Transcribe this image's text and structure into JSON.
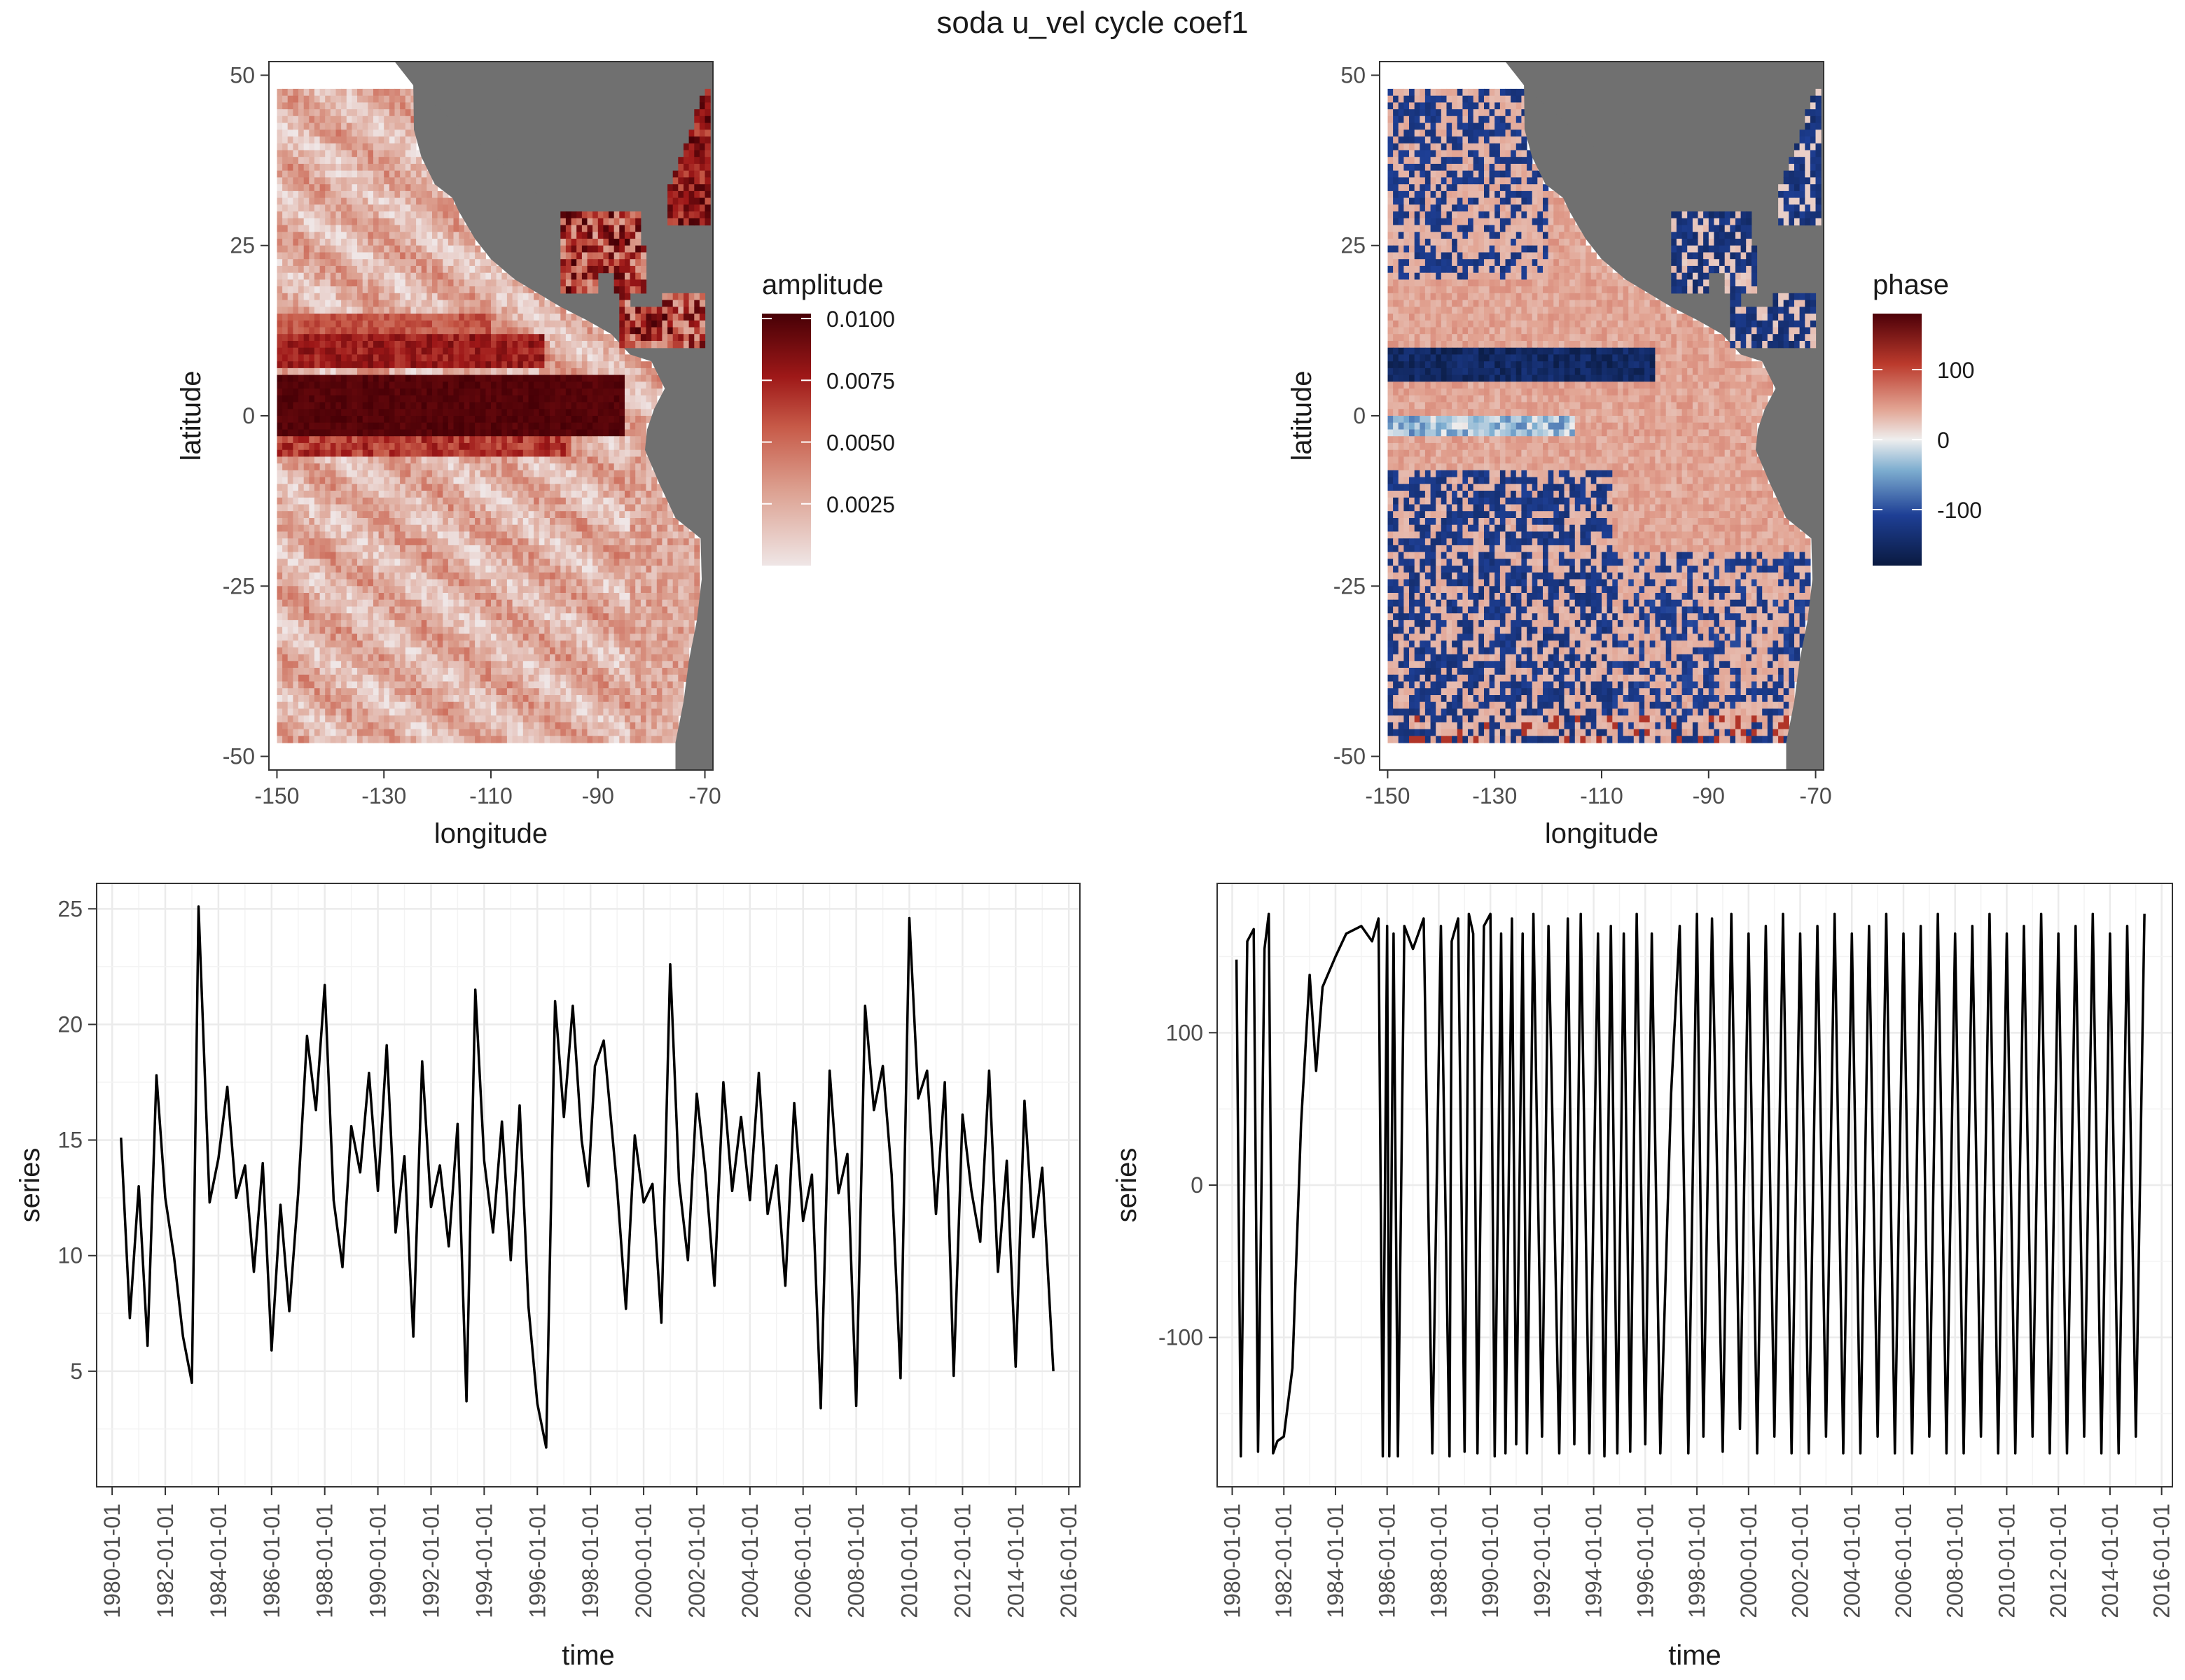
{
  "title": "soda u_vel cycle coef1",
  "colors": {
    "land": "#707070",
    "amp_low": "#efe6e6",
    "amp_high": "#470006",
    "phase_low": "#0a1a40",
    "phase_mid": "#eeeeee",
    "phase_high": "#4d0008",
    "line": "#000000"
  },
  "chart_data": [
    {
      "type": "heatmap",
      "panel": "top-left",
      "xlabel": "longitude",
      "ylabel": "latitude",
      "xticks": [
        "-150",
        "-130",
        "-110",
        "-90",
        "-70"
      ],
      "yticks": [
        "50",
        "25",
        "0",
        "-25",
        "-50"
      ],
      "xlim": [
        -151.5,
        -68.5
      ],
      "ylim": [
        -52,
        52
      ],
      "grid_extent": {
        "lon": [
          -150,
          -70
        ],
        "lat": [
          -48,
          48
        ]
      },
      "legend": {
        "title": "amplitude",
        "labels": [
          "0.0100",
          "0.0075",
          "0.0050",
          "0.0025"
        ],
        "values": [
          0.01,
          0.0075,
          0.005,
          0.0025
        ],
        "range": [
          0,
          0.0102
        ],
        "position": "right"
      },
      "features": [
        {
          "name": "equatorial band",
          "lat": [
            -3,
            6
          ],
          "lon": [
            -150,
            -85
          ],
          "value": 0.0102
        },
        {
          "name": "north band",
          "lat": [
            7,
            12
          ],
          "lon": [
            -150,
            -100
          ],
          "value": 0.0065
        },
        {
          "name": "south band",
          "lat": [
            -6,
            -3
          ],
          "lon": [
            -150,
            -95
          ],
          "value": 0.006
        }
      ]
    },
    {
      "type": "heatmap",
      "panel": "top-right",
      "xlabel": "longitude",
      "ylabel": "latitude",
      "xticks": [
        "-150",
        "-130",
        "-110",
        "-90",
        "-70"
      ],
      "yticks": [
        "50",
        "25",
        "0",
        "-25",
        "-50"
      ],
      "xlim": [
        -151.5,
        -68.5
      ],
      "ylim": [
        -52,
        52
      ],
      "grid_extent": {
        "lon": [
          -150,
          -70
        ],
        "lat": [
          -48,
          48
        ]
      },
      "legend": {
        "title": "phase",
        "labels": [
          "100",
          "0",
          "-100"
        ],
        "values": [
          100,
          0,
          -100
        ],
        "range": [
          -180,
          180
        ],
        "position": "right"
      },
      "features": [
        {
          "name": "north band",
          "lat": [
            5,
            10
          ],
          "lon": [
            -150,
            -100
          ],
          "value": -170
        },
        {
          "name": "equatorial strip",
          "lat": [
            -3,
            0
          ],
          "lon": [
            -150,
            -115
          ],
          "value": -90
        },
        {
          "name": "eastern basin",
          "lat": [
            -48,
            48
          ],
          "lon": [
            -110,
            -80
          ],
          "value": 40
        }
      ]
    },
    {
      "type": "line",
      "panel": "bottom-left",
      "xlabel": "time",
      "ylabel": "series",
      "xticks": [
        "1980-01-01",
        "1982-01-01",
        "1984-01-01",
        "1986-01-01",
        "1988-01-01",
        "1990-01-01",
        "1992-01-01",
        "1994-01-01",
        "1996-01-01",
        "1998-01-01",
        "2000-01-01",
        "2002-01-01",
        "2004-01-01",
        "2006-01-01",
        "2008-01-01",
        "2010-01-01",
        "2012-01-01",
        "2014-01-01",
        "2016-01-01"
      ],
      "yticks": [
        "25",
        "20",
        "15",
        "10",
        "5"
      ],
      "ylim": [
        0,
        26.1
      ],
      "xlim": [
        "1979-06-01",
        "2016-06-01"
      ],
      "series": [
        {
          "x": [
            "1980-05-01",
            "1980-09-01",
            "1981-01-01",
            "1981-05-01",
            "1981-09-01",
            "1982-01-01",
            "1982-05-01",
            "1982-09-01",
            "1983-01-01",
            "1983-04-01",
            "1983-09-01",
            "1984-01-01",
            "1984-05-01",
            "1984-09-01",
            "1985-01-01",
            "1985-05-01",
            "1985-09-01",
            "1986-01-01",
            "1986-05-01",
            "1986-09-01",
            "1987-01-01",
            "1987-05-01",
            "1987-09-01",
            "1988-01-01",
            "1988-05-01",
            "1988-09-01",
            "1989-01-01",
            "1989-05-01",
            "1989-09-01",
            "1990-01-01",
            "1990-05-01",
            "1990-09-01",
            "1991-01-01",
            "1991-05-01",
            "1991-09-01",
            "1992-01-01",
            "1992-05-01",
            "1992-09-01",
            "1993-01-01",
            "1993-05-01",
            "1993-09-01",
            "1994-01-01",
            "1994-05-01",
            "1994-09-01",
            "1995-01-01",
            "1995-05-01",
            "1995-09-01",
            "1996-01-01",
            "1996-05-01",
            "1996-09-01",
            "1997-01-01",
            "1997-05-01",
            "1997-09-01",
            "1997-12-01",
            "1998-03-01",
            "1998-07-01",
            "1999-01-01",
            "1999-05-01",
            "1999-09-01",
            "2000-01-01",
            "2000-05-01",
            "2000-09-01",
            "2001-01-01",
            "2001-05-01",
            "2001-09-01",
            "2002-01-01",
            "2002-05-01",
            "2002-09-01",
            "2003-01-01",
            "2003-05-01",
            "2003-09-01",
            "2004-01-01",
            "2004-05-01",
            "2004-09-01",
            "2005-01-01",
            "2005-05-01",
            "2005-09-01",
            "2006-01-01",
            "2006-05-01",
            "2006-09-01",
            "2007-01-01",
            "2007-05-01",
            "2007-09-01",
            "2008-01-01",
            "2008-05-01",
            "2008-09-01",
            "2009-01-01",
            "2009-05-01",
            "2009-09-01",
            "2010-01-01",
            "2010-05-01",
            "2010-09-01",
            "2011-01-01",
            "2011-05-01",
            "2011-09-01",
            "2012-01-01",
            "2012-05-01",
            "2012-09-01",
            "2013-01-01",
            "2013-05-01",
            "2013-09-01",
            "2014-01-01",
            "2014-05-01",
            "2014-09-01",
            "2015-01-01",
            "2015-06-01"
          ],
          "values": [
            15.1,
            7.3,
            13.0,
            6.1,
            17.8,
            12.5,
            9.9,
            6.5,
            4.5,
            25.1,
            12.3,
            14.2,
            17.3,
            12.5,
            13.9,
            9.3,
            14.0,
            5.9,
            12.2,
            7.6,
            12.7,
            19.5,
            16.3,
            21.7,
            12.4,
            9.5,
            15.6,
            13.6,
            17.9,
            12.8,
            19.1,
            11.0,
            14.3,
            6.5,
            18.4,
            12.1,
            13.9,
            10.4,
            15.7,
            3.7,
            21.5,
            14.1,
            11.0,
            15.8,
            9.8,
            16.5,
            7.8,
            3.6,
            1.7,
            21.0,
            16.0,
            20.8,
            15.0,
            13.0,
            18.2,
            19.3,
            13.0,
            7.7,
            15.2,
            12.3,
            13.1,
            7.1,
            22.6,
            13.2,
            9.8,
            17.0,
            13.5,
            8.7,
            17.5,
            12.8,
            16.0,
            12.4,
            17.9,
            11.8,
            13.9,
            8.7,
            16.6,
            11.5,
            13.5,
            3.4,
            18.0,
            12.7,
            14.4,
            3.5,
            20.8,
            16.3,
            18.2,
            13.5,
            4.7,
            24.6,
            16.8,
            18.0,
            11.8,
            17.5,
            4.8,
            16.1,
            12.8,
            10.6,
            18.0,
            9.3,
            14.1,
            5.2,
            16.7,
            10.8,
            13.8,
            5.0
          ]
        }
      ]
    },
    {
      "type": "line",
      "panel": "bottom-right",
      "xlabel": "time",
      "ylabel": "series",
      "xticks": [
        "1980-01-01",
        "1982-01-01",
        "1984-01-01",
        "1986-01-01",
        "1988-01-01",
        "1990-01-01",
        "1992-01-01",
        "1994-01-01",
        "1996-01-01",
        "1998-01-01",
        "2000-01-01",
        "2002-01-01",
        "2004-01-01",
        "2006-01-01",
        "2008-01-01",
        "2010-01-01",
        "2012-01-01",
        "2014-01-01",
        "2016-01-01"
      ],
      "yticks": [
        "100",
        "0",
        "-100"
      ],
      "ylim": [
        -198,
        198
      ],
      "xlim": [
        "1979-06-01",
        "2016-06-01"
      ],
      "series": [
        {
          "x": [
            "1980-03-01",
            "1980-05-01",
            "1980-08-01",
            "1980-11-01",
            "1981-01-01",
            "1981-04-01",
            "1981-06-01",
            "1981-08-01",
            "1981-10-01",
            "1982-01-01",
            "1982-05-01",
            "1982-09-01",
            "1983-01-01",
            "1983-04-01",
            "1983-07-01",
            "1984-01-01",
            "1984-06-01",
            "1985-01-01",
            "1985-06-01",
            "1985-09-01",
            "1985-11-01",
            "1986-01-01",
            "1986-02-01",
            "1986-04-01",
            "1986-06-01",
            "1986-09-01",
            "1987-01-01",
            "1987-06-01",
            "1987-10-01",
            "1988-02-01",
            "1988-06-01",
            "1988-07-01",
            "1988-10-01",
            "1989-01-01",
            "1989-03-01",
            "1989-05-01",
            "1989-07-01",
            "1989-10-01",
            "1990-01-01",
            "1990-03-01",
            "1990-06-01",
            "1990-08-01",
            "1990-11-01",
            "1991-01-01",
            "1991-04-01",
            "1991-06-01",
            "1991-09-01",
            "1992-01-01",
            "1992-04-01",
            "1992-09-01",
            "1993-01-01",
            "1993-04-01",
            "1993-07-01",
            "1993-11-01",
            "1994-03-01",
            "1994-06-01",
            "1994-09-01",
            "1994-12-01",
            "1995-03-01",
            "1995-06-01",
            "1995-09-01",
            "1996-01-01",
            "1996-04-01",
            "1996-08-01",
            "1997-01-01",
            "1997-05-01",
            "1997-09-01",
            "1998-01-01",
            "1998-04-01",
            "1998-08-01",
            "1999-01-01",
            "1999-05-01",
            "1999-09-01",
            "2000-01-01",
            "2000-05-01",
            "2000-09-01",
            "2001-01-01",
            "2001-05-01",
            "2001-09-01",
            "2002-01-01",
            "2002-05-01",
            "2002-09-01",
            "2003-01-01",
            "2003-05-01",
            "2003-09-01",
            "2004-01-01",
            "2004-05-01",
            "2004-09-01",
            "2005-01-01",
            "2005-05-01",
            "2005-09-01",
            "2006-01-01",
            "2006-05-01",
            "2006-09-01",
            "2007-01-01",
            "2007-05-01",
            "2007-09-01",
            "2008-01-01",
            "2008-05-01",
            "2008-09-01",
            "2009-01-01",
            "2009-05-01",
            "2009-09-01",
            "2010-01-01",
            "2010-05-01",
            "2010-09-01",
            "2011-01-01",
            "2011-05-01",
            "2011-09-01",
            "2012-01-01",
            "2012-05-01",
            "2012-09-01",
            "2013-01-01",
            "2013-05-01",
            "2013-09-01",
            "2014-01-01",
            "2014-05-01",
            "2014-09-01",
            "2015-01-01",
            "2015-05-01"
          ],
          "values": [
            148,
            -178,
            160,
            168,
            -175,
            155,
            178,
            -176,
            -168,
            -165,
            -120,
            40,
            138,
            75,
            130,
            150,
            165,
            170,
            160,
            175,
            -178,
            170,
            -178,
            165,
            -178,
            170,
            155,
            175,
            -176,
            170,
            -178,
            160,
            175,
            -175,
            178,
            165,
            -176,
            170,
            178,
            -178,
            165,
            -176,
            175,
            -170,
            165,
            -176,
            178,
            -165,
            170,
            -176,
            175,
            -170,
            178,
            -176,
            165,
            -178,
            170,
            -176,
            165,
            -175,
            178,
            -170,
            165,
            -176,
            60,
            170,
            -176,
            178,
            -165,
            175,
            -175,
            178,
            -160,
            165,
            -176,
            170,
            -165,
            178,
            -176,
            165,
            -176,
            170,
            -165,
            178,
            -176,
            165,
            -176,
            170,
            -165,
            178,
            -176,
            165,
            -176,
            170,
            -165,
            178,
            -176,
            165,
            -176,
            170,
            -165,
            178,
            -176,
            165,
            -176,
            170,
            -165,
            178,
            -176,
            165,
            -176,
            170,
            -165,
            178,
            -176,
            165,
            -176,
            170,
            -165,
            178
          ]
        }
      ]
    }
  ]
}
